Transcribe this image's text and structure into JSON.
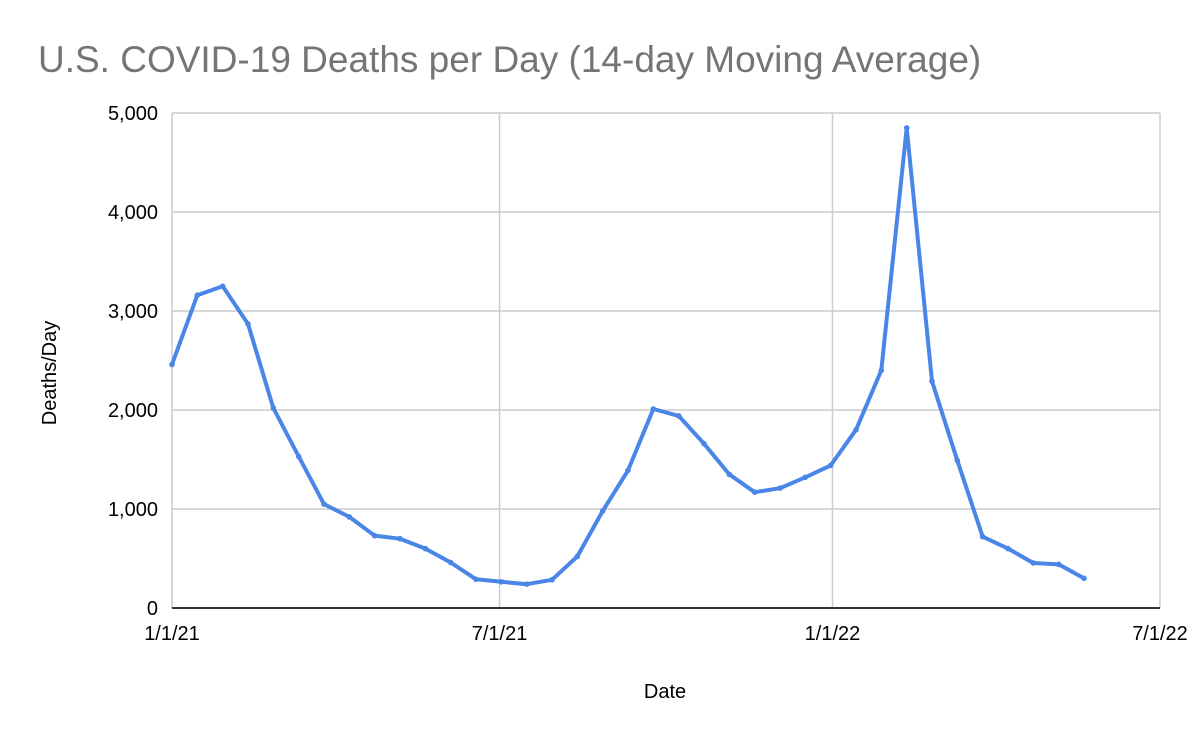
{
  "chart_data": {
    "type": "line",
    "title": "U.S. COVID-19 Deaths per Day (14-day Moving Average)",
    "xlabel": "Date",
    "ylabel": "Deaths/Day",
    "x_type": "date",
    "xlim": [
      "2021-01-01",
      "2022-07-01"
    ],
    "x_ticks": [
      {
        "date": "2021-01-01",
        "label": "1/1/21"
      },
      {
        "date": "2021-07-01",
        "label": "7/1/21"
      },
      {
        "date": "2022-01-01",
        "label": "1/1/22"
      },
      {
        "date": "2022-07-01",
        "label": "7/1/22"
      }
    ],
    "ylim": [
      0,
      5000
    ],
    "y_ticks": [
      {
        "value": 0,
        "label": "0"
      },
      {
        "value": 1000,
        "label": "1,000"
      },
      {
        "value": 2000,
        "label": "2,000"
      },
      {
        "value": 3000,
        "label": "3,000"
      },
      {
        "value": 4000,
        "label": "4,000"
      },
      {
        "value": 5000,
        "label": "5,000"
      }
    ],
    "grid": true,
    "legend": "none",
    "series": [
      {
        "color": "#4a86e8",
        "points": [
          {
            "x": "2021-01-01",
            "y": 2460
          },
          {
            "x": "2021-01-15",
            "y": 3160
          },
          {
            "x": "2021-01-29",
            "y": 3250
          },
          {
            "x": "2021-02-12",
            "y": 2870
          },
          {
            "x": "2021-02-26",
            "y": 2020
          },
          {
            "x": "2021-03-12",
            "y": 1530
          },
          {
            "x": "2021-03-26",
            "y": 1050
          },
          {
            "x": "2021-04-09",
            "y": 920
          },
          {
            "x": "2021-04-23",
            "y": 730
          },
          {
            "x": "2021-05-07",
            "y": 700
          },
          {
            "x": "2021-05-21",
            "y": 600
          },
          {
            "x": "2021-06-04",
            "y": 460
          },
          {
            "x": "2021-06-18",
            "y": 290
          },
          {
            "x": "2021-07-02",
            "y": 265
          },
          {
            "x": "2021-07-16",
            "y": 240
          },
          {
            "x": "2021-07-30",
            "y": 285
          },
          {
            "x": "2021-08-13",
            "y": 520
          },
          {
            "x": "2021-08-27",
            "y": 980
          },
          {
            "x": "2021-09-10",
            "y": 1390
          },
          {
            "x": "2021-09-24",
            "y": 2010
          },
          {
            "x": "2021-10-08",
            "y": 1940
          },
          {
            "x": "2021-10-22",
            "y": 1660
          },
          {
            "x": "2021-11-05",
            "y": 1350
          },
          {
            "x": "2021-11-19",
            "y": 1170
          },
          {
            "x": "2021-12-03",
            "y": 1210
          },
          {
            "x": "2021-12-17",
            "y": 1320
          },
          {
            "x": "2021-12-31",
            "y": 1440
          },
          {
            "x": "2022-01-14",
            "y": 1800
          },
          {
            "x": "2022-01-28",
            "y": 2400
          },
          {
            "x": "2022-02-11",
            "y": 4850
          },
          {
            "x": "2022-02-25",
            "y": 2290
          },
          {
            "x": "2022-03-11",
            "y": 1490
          },
          {
            "x": "2022-03-25",
            "y": 720
          },
          {
            "x": "2022-04-08",
            "y": 600
          },
          {
            "x": "2022-04-22",
            "y": 455
          },
          {
            "x": "2022-05-06",
            "y": 440
          },
          {
            "x": "2022-05-20",
            "y": 300
          }
        ]
      }
    ]
  }
}
